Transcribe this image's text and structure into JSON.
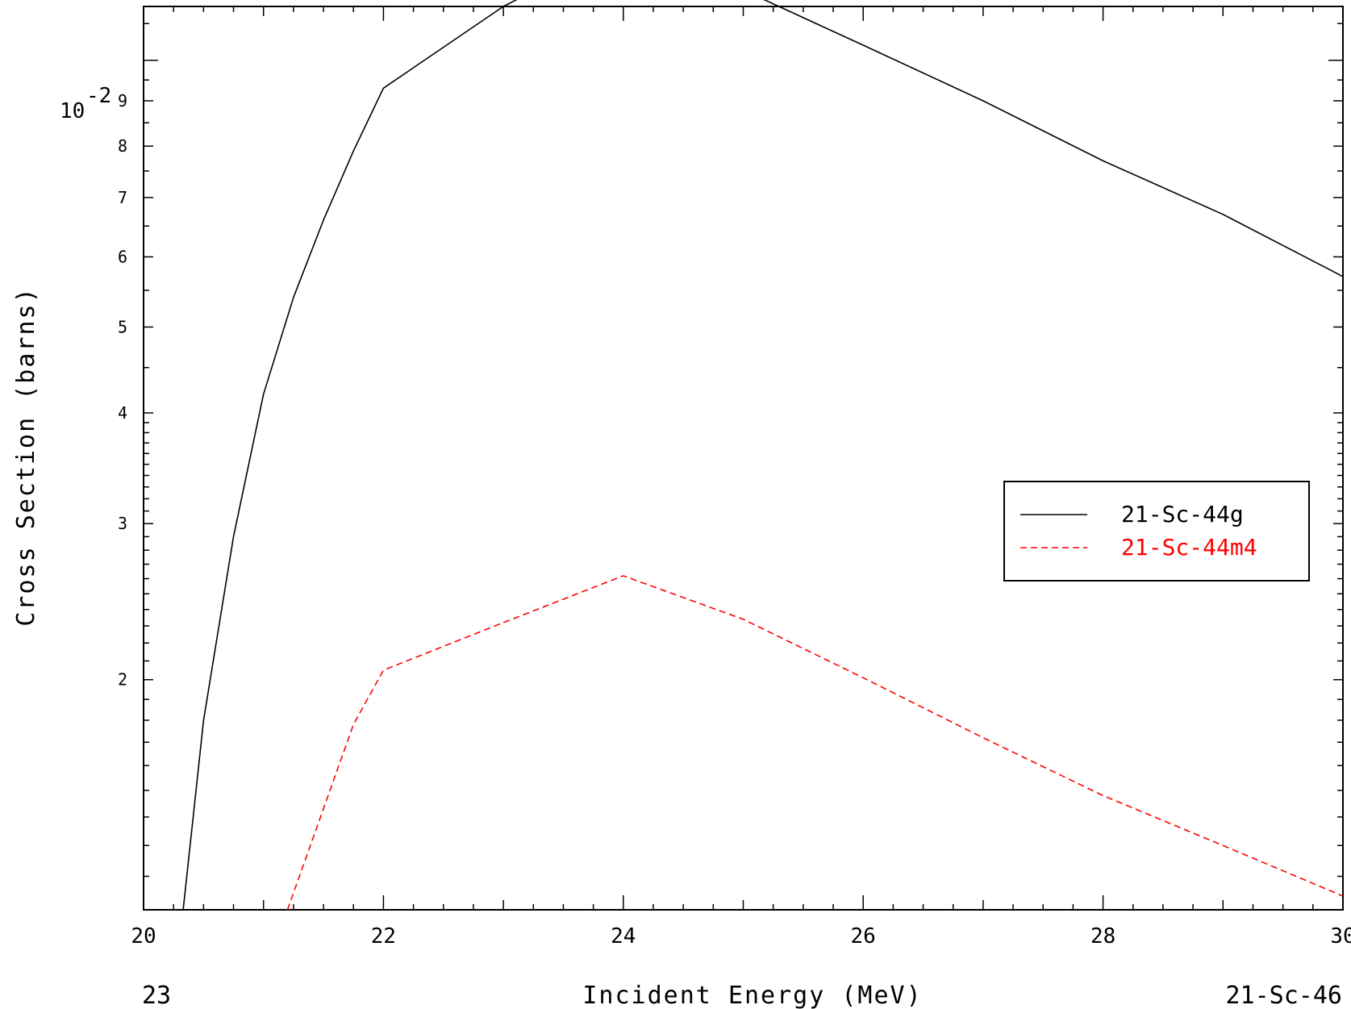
{
  "chart_data": {
    "type": "line",
    "title": "",
    "xlabel": "Incident Energy (MeV)",
    "ylabel": "Cross Section (barns)",
    "xlim": [
      20,
      30
    ],
    "ylim": [
      0.0011,
      0.0115
    ],
    "yscale": "log",
    "x_ticks": [
      "20",
      "22",
      "24",
      "26",
      "28",
      "30"
    ],
    "y_decade_label": {
      "base": "10",
      "exponent": "-2"
    },
    "y_minor_labels": [
      "9",
      "8",
      "7",
      "6",
      "5",
      "4",
      "3",
      "2"
    ],
    "footer_left": "23",
    "footer_right": "21-Sc-46",
    "legend_position": "right",
    "series": [
      {
        "name": "21-Sc-44g",
        "color": "#000000",
        "dash": "solid",
        "x": [
          20.33,
          20.5,
          20.75,
          21.0,
          21.25,
          21.5,
          21.75,
          22.0,
          23.0,
          24.0,
          25.0,
          26.0,
          27.0,
          28.0,
          29.0,
          30.0
        ],
        "y": [
          0.0011,
          0.0018,
          0.0029,
          0.0042,
          0.0054,
          0.0066,
          0.0079,
          0.0093,
          0.0115,
          0.0135,
          0.012,
          0.0104,
          0.009,
          0.0077,
          0.0067,
          0.0057
        ]
      },
      {
        "name": "21-Sc-44m4",
        "color": "#ff0000",
        "dash": "dashed",
        "x": [
          21.2,
          21.5,
          21.75,
          22.0,
          23.0,
          24.0,
          25.0,
          26.0,
          27.0,
          28.0,
          29.0,
          30.0
        ],
        "y": [
          0.0011,
          0.00143,
          0.00178,
          0.00205,
          0.00232,
          0.00262,
          0.00234,
          0.00201,
          0.00172,
          0.00148,
          0.0013,
          0.00114
        ]
      }
    ]
  }
}
